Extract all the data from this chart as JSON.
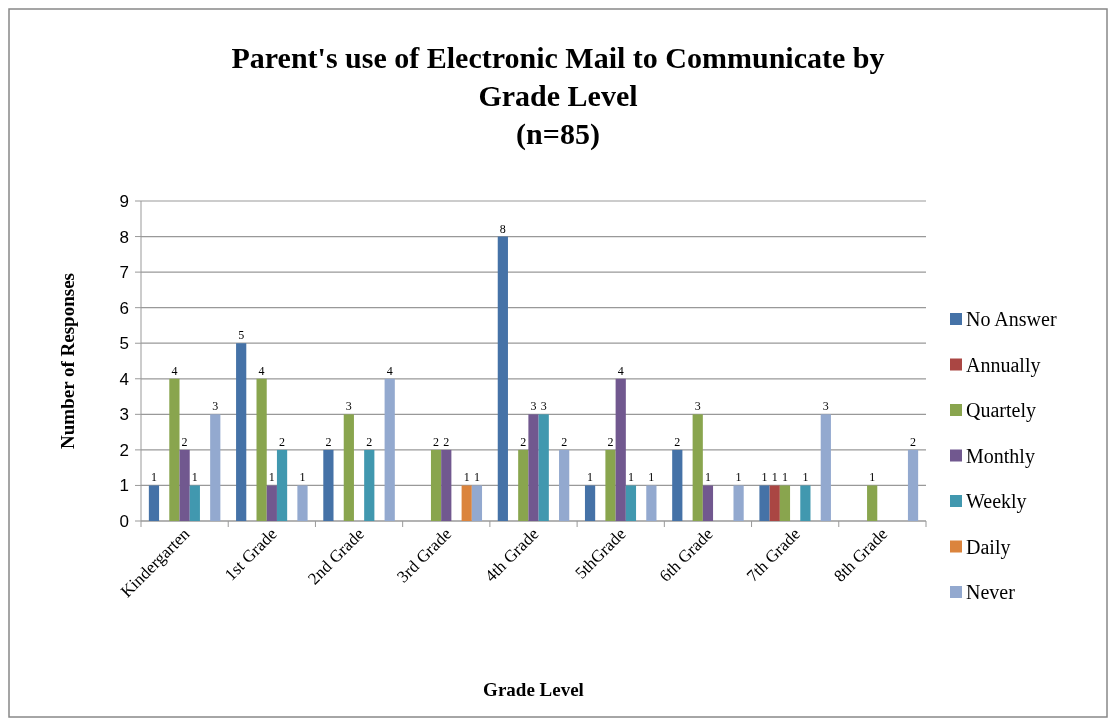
{
  "chart_data": {
    "type": "bar",
    "title": "Parent's use of Electronic Mail to Communicate  by Grade Level (n=85)",
    "xlabel": "Grade Level",
    "ylabel": "Number of Responses",
    "categories": [
      "Kindergarten",
      "1st Grade",
      "2nd Grade",
      "3rd Grade",
      "4th Grade",
      "5thGrade",
      "6th Grade",
      "7th Grade",
      "8th Grade"
    ],
    "series": [
      {
        "name": "No Answer",
        "color": "#4572a7",
        "values": [
          1,
          5,
          2,
          0,
          8,
          1,
          2,
          1,
          0
        ],
        "value_labels": [
          "1",
          "5",
          "2",
          null,
          "8",
          "1",
          "2",
          "1",
          null
        ]
      },
      {
        "name": "Annually",
        "color": "#aa4643",
        "values": [
          0,
          0,
          0,
          0,
          0,
          0,
          0,
          1,
          0
        ],
        "value_labels": [
          null,
          null,
          null,
          null,
          null,
          null,
          null,
          "1",
          null
        ]
      },
      {
        "name": "Quartely",
        "color": "#89a54e",
        "values": [
          4,
          4,
          3,
          2,
          2,
          2,
          3,
          1,
          1
        ],
        "value_labels": [
          "4",
          "4",
          "3",
          "2",
          "2",
          "2",
          "3",
          "1",
          "1"
        ]
      },
      {
        "name": "Monthly",
        "color": "#71588f",
        "values": [
          2,
          1,
          0,
          2,
          3,
          4,
          1,
          0,
          0
        ],
        "value_labels": [
          "2",
          "1",
          null,
          "2",
          "3",
          "4",
          "1",
          null,
          null
        ]
      },
      {
        "name": "Weekly",
        "color": "#4198af",
        "values": [
          1,
          2,
          2,
          0,
          3,
          1,
          0,
          1,
          0
        ],
        "value_labels": [
          "1",
          "2",
          "2",
          null,
          "3",
          "1",
          null,
          "1",
          null
        ]
      },
      {
        "name": "Daily",
        "color": "#db843d",
        "values": [
          0,
          0,
          0,
          1,
          0,
          0,
          0,
          0,
          0
        ],
        "value_labels": [
          null,
          null,
          null,
          "1",
          null,
          null,
          null,
          null,
          null
        ]
      },
      {
        "name": "Never",
        "color": "#93a9cf",
        "values": [
          3,
          1,
          4,
          1,
          2,
          1,
          1,
          3,
          2
        ],
        "value_labels": [
          "3",
          "1",
          "4",
          "1",
          "2",
          "1",
          "1",
          "3",
          "2"
        ]
      }
    ],
    "ylim": [
      0,
      9
    ],
    "yticks": [
      0,
      1,
      2,
      3,
      4,
      5,
      6,
      7,
      8,
      9
    ],
    "grid": "y",
    "legend": "right"
  }
}
